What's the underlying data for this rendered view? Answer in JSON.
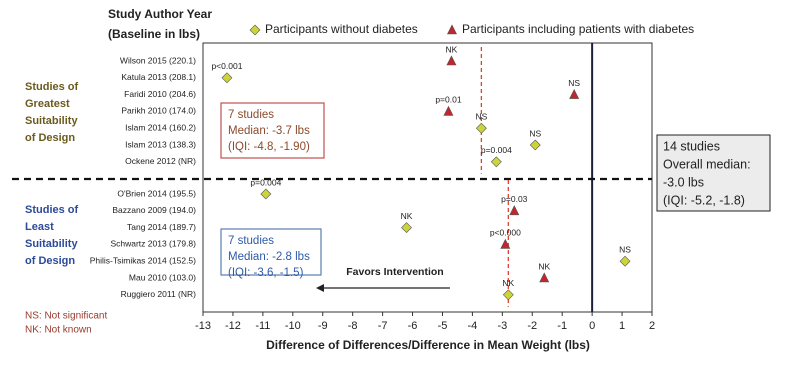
{
  "chart_data": {
    "type": "scatter",
    "header": [
      "Study Author Year",
      "(Baseline in lbs)"
    ],
    "x_label": "Difference of Differences/Difference in Mean Weight (lbs)",
    "xlim": [
      -13,
      2
    ],
    "xticks": [
      -13,
      -12,
      -11,
      -10,
      -9,
      -8,
      -7,
      -6,
      -5,
      -4,
      -3,
      -2,
      -1,
      0,
      1,
      2
    ],
    "reference_line": 0,
    "series": [
      {
        "name": "Participants without diabetes",
        "color": "#cdd43a",
        "marker": "diamond"
      },
      {
        "name": "Participants including patients with diabetes",
        "color": "#c0262d",
        "marker": "triangle"
      }
    ],
    "groups": [
      {
        "label": [
          "Studies of",
          "Greatest",
          "Suitability",
          "of Design"
        ],
        "color": "#6b5a1e",
        "categories": [
          "Wilson 2015 (220.1)",
          "Katula 2013 (208.1)",
          "Faridi 2010 (204.6)",
          "Parikh 2010 (174.0)",
          "Islam 2014 (160.2)",
          "Islam 2013 (138.3)",
          "Ockene 2012 (NR)"
        ],
        "series": [
          {
            "values": [
              null,
              -12.2,
              null,
              null,
              -3.7,
              -1.9,
              -3.2
            ]
          },
          {
            "values": [
              -4.7,
              null,
              -0.6,
              -4.8,
              null,
              null,
              null
            ]
          }
        ],
        "annotations": [
          "NK",
          "p<0.001",
          "NS",
          "p=0.01",
          "NS",
          "NS",
          "p=0.004"
        ],
        "median": -3.7,
        "box": [
          "7 studies",
          "Median: -3.7 lbs",
          "(IQI: -4.8, -1.90)"
        ],
        "box_color": "#c0504d",
        "box_text_color": "#8b4a2b"
      },
      {
        "label": [
          "Studies of",
          "Least",
          "Suitability",
          "of Design"
        ],
        "color": "#2c4a9a",
        "categories": [
          "O'Brien 2014 (195.5)",
          "Bazzano 2009 (194.0)",
          "Tang 2014 (189.7)",
          "Schwartz 2013 (179.8)",
          "Philis-Tsimikas 2014 (152.5)",
          "Mau 2010 (103.0)",
          "Ruggiero 2011 (NR)"
        ],
        "series": [
          {
            "values": [
              -10.9,
              null,
              -6.2,
              null,
              1.1,
              null,
              -2.8
            ]
          },
          {
            "values": [
              null,
              -2.6,
              null,
              -2.9,
              null,
              -1.6,
              null
            ]
          }
        ],
        "annotations": [
          "p=0.004",
          "p=0.03",
          "NK",
          "p<0.000",
          "NS",
          "NK",
          "NK"
        ],
        "median": -2.8,
        "box": [
          "7 studies",
          "Median: -2.8 lbs",
          "(IQI: -3.6, -1.5)"
        ],
        "box_color": "#5b7db1",
        "box_text_color": "#2e5aa8"
      }
    ],
    "overall_box": [
      "14 studies",
      "Overall median:",
      "-3.0 lbs",
      "(IQI: -5.2, -1.8)"
    ],
    "arrow_label": "Favors Intervention",
    "footnotes": [
      "NS: Not significant",
      "NK: Not known"
    ]
  }
}
